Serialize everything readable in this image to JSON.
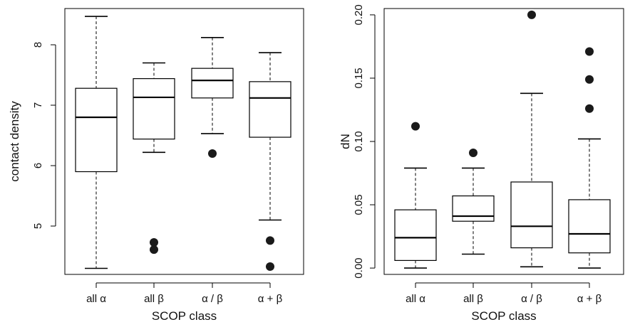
{
  "chart_data": [
    {
      "type": "box",
      "xlabel": "SCOP class",
      "ylabel": "contact density",
      "categories": [
        "all α",
        "all β",
        "α / β",
        "α + β"
      ],
      "ylim": [
        4.2,
        8.6
      ],
      "yticks": [
        "5",
        "6",
        "7",
        "8"
      ],
      "yticks_values": [
        5,
        6,
        7,
        8
      ],
      "y_tick_labels_rotated": true,
      "grid": false,
      "boxes": [
        {
          "category": "all α",
          "lower_whisker": 4.3,
          "q1": 5.9,
          "median": 6.8,
          "q3": 7.28,
          "upper_whisker": 8.47,
          "outliers": []
        },
        {
          "category": "all β",
          "lower_whisker": 6.22,
          "q1": 6.44,
          "median": 7.13,
          "q3": 7.44,
          "upper_whisker": 7.7,
          "outliers": [
            4.73,
            4.61
          ]
        },
        {
          "category": "α / β",
          "lower_whisker": 6.53,
          "q1": 7.12,
          "median": 7.41,
          "q3": 7.61,
          "upper_whisker": 8.12,
          "outliers": [
            6.2
          ]
        },
        {
          "category": "α + β",
          "lower_whisker": 5.1,
          "q1": 6.47,
          "median": 7.12,
          "q3": 7.39,
          "upper_whisker": 7.87,
          "outliers": [
            4.76,
            4.33
          ]
        }
      ]
    },
    {
      "type": "box",
      "xlabel": "SCOP class",
      "ylabel": "dN",
      "categories": [
        "all α",
        "all β",
        "α / β",
        "α + β"
      ],
      "ylim": [
        -0.005,
        0.205
      ],
      "yticks": [
        "0.00",
        "0.05",
        "0.10",
        "0.15",
        "0.20"
      ],
      "yticks_values": [
        0,
        0.05,
        0.1,
        0.15,
        0.2
      ],
      "y_tick_labels_rotated": true,
      "grid": false,
      "boxes": [
        {
          "category": "all α",
          "lower_whisker": 0.0,
          "q1": 0.006,
          "median": 0.024,
          "q3": 0.046,
          "upper_whisker": 0.079,
          "outliers": [
            0.112
          ]
        },
        {
          "category": "all β",
          "lower_whisker": 0.011,
          "q1": 0.037,
          "median": 0.041,
          "q3": 0.057,
          "upper_whisker": 0.079,
          "outliers": [
            0.091
          ]
        },
        {
          "category": "α / β",
          "lower_whisker": 0.001,
          "q1": 0.016,
          "median": 0.033,
          "q3": 0.068,
          "upper_whisker": 0.138,
          "outliers": [
            0.2
          ]
        },
        {
          "category": "α + β",
          "lower_whisker": 0.0,
          "q1": 0.012,
          "median": 0.027,
          "q3": 0.054,
          "upper_whisker": 0.102,
          "outliers": [
            0.171,
            0.149,
            0.126
          ]
        }
      ]
    }
  ]
}
